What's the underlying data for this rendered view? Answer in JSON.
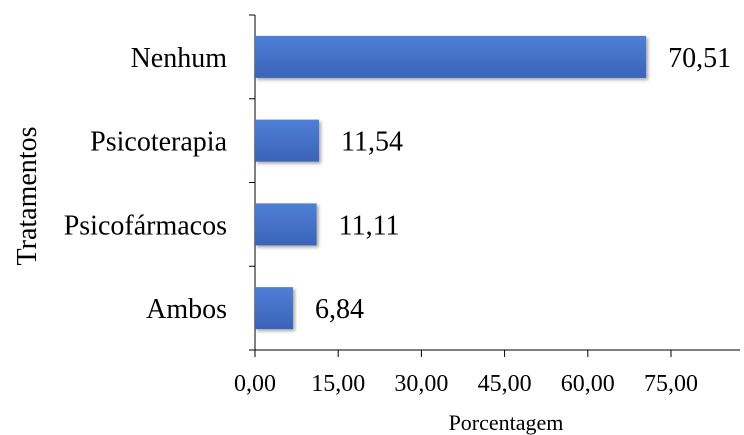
{
  "chart_data": {
    "type": "bar",
    "orientation": "horizontal",
    "title": "",
    "xlabel": "Porcentagem",
    "ylabel": "Tratamentos",
    "categories": [
      "Nenhum",
      "Psicoterapia",
      "Psicofármacos",
      "Ambos"
    ],
    "values": [
      70.51,
      11.54,
      11.11,
      6.84
    ],
    "value_labels": [
      "70,51",
      "11,54",
      "11,11",
      "6,84"
    ],
    "xlim": [
      0,
      75
    ],
    "x_ticks": [
      0,
      15,
      30,
      45,
      60,
      75
    ],
    "x_tick_labels": [
      "0,00",
      "15,00",
      "30,00",
      "45,00",
      "60,00",
      "75,00"
    ],
    "grid": false,
    "legend": "none",
    "bar_color": "#4472C4"
  }
}
